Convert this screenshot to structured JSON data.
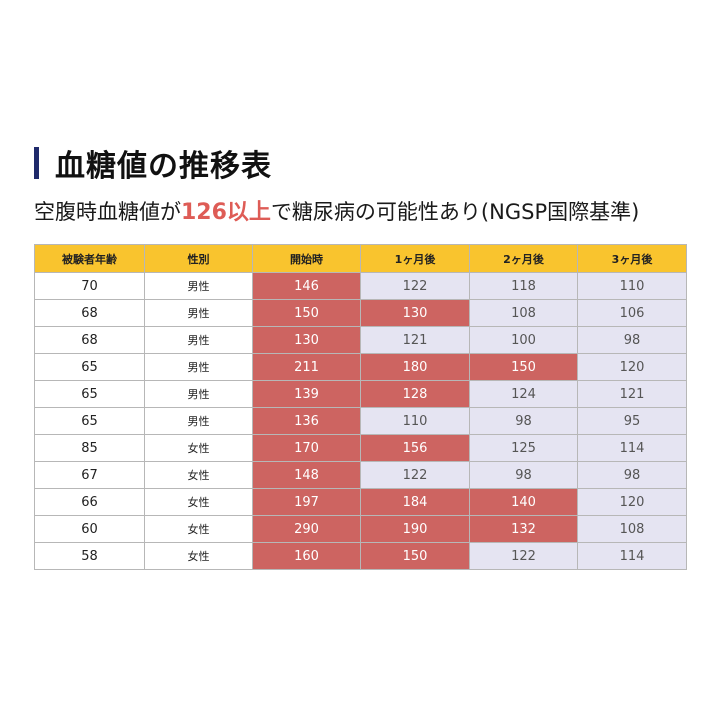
{
  "heading": {
    "title": "血糖値の推移表"
  },
  "subtitle": {
    "prefix": "空腹時血糖値が",
    "highlight": "126以上",
    "suffix": "で糖尿病の可能性あり(NGSP国際基準)"
  },
  "colors": {
    "accent_bar": "#1f2a6b",
    "header_bg": "#f9c42e",
    "high_cell": "#cd6461",
    "normal_cell": "#e5e4f2",
    "highlight_text": "#de5c56"
  },
  "table": {
    "threshold": 126,
    "headers": [
      "被験者年齢",
      "性別",
      "開始時",
      "1ヶ月後",
      "2ヶ月後",
      "3ヶ月後"
    ],
    "rows": [
      {
        "age": "70",
        "sex": "男性",
        "values": [
          146,
          122,
          118,
          110
        ]
      },
      {
        "age": "68",
        "sex": "男性",
        "values": [
          150,
          130,
          108,
          106
        ]
      },
      {
        "age": "68",
        "sex": "男性",
        "values": [
          130,
          121,
          100,
          98
        ]
      },
      {
        "age": "65",
        "sex": "男性",
        "values": [
          211,
          180,
          150,
          120
        ]
      },
      {
        "age": "65",
        "sex": "男性",
        "values": [
          139,
          128,
          124,
          121
        ]
      },
      {
        "age": "65",
        "sex": "男性",
        "values": [
          136,
          110,
          98,
          95
        ]
      },
      {
        "age": "85",
        "sex": "女性",
        "values": [
          170,
          156,
          125,
          114
        ]
      },
      {
        "age": "67",
        "sex": "女性",
        "values": [
          148,
          122,
          98,
          98
        ]
      },
      {
        "age": "66",
        "sex": "女性",
        "values": [
          197,
          184,
          140,
          120
        ]
      },
      {
        "age": "60",
        "sex": "女性",
        "values": [
          290,
          190,
          132,
          108
        ]
      },
      {
        "age": "58",
        "sex": "女性",
        "values": [
          160,
          150,
          122,
          114
        ]
      }
    ]
  }
}
